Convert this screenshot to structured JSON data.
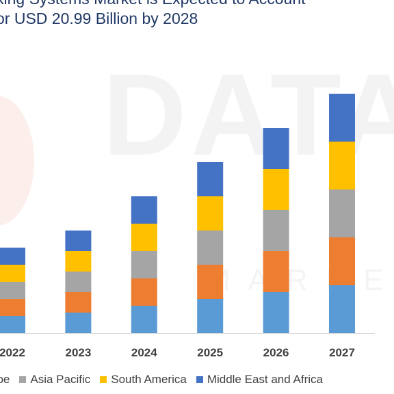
{
  "chart_data": {
    "type": "bar",
    "stacked": true,
    "title_lines": [
      "king Systems Market is Expected to Account",
      "or USD 20.99 Billion by 2028"
    ],
    "categories": [
      "2022",
      "2023",
      "2024",
      "2025",
      "2026",
      "2027"
    ],
    "series": [
      {
        "name": "",
        "color": "#5b9bd5",
        "values": [
          1.0,
          1.2,
          1.6,
          2.0,
          2.4,
          2.8
        ]
      },
      {
        "name": "",
        "color": "#ed7d31",
        "values": [
          1.0,
          1.2,
          1.6,
          2.0,
          2.4,
          2.8
        ]
      },
      {
        "name": "Asia Pacific",
        "color": "#a5a5a5",
        "values": [
          1.0,
          1.2,
          1.6,
          2.0,
          2.4,
          2.8
        ]
      },
      {
        "name": "South America",
        "color": "#ffc000",
        "values": [
          1.0,
          1.2,
          1.6,
          2.0,
          2.4,
          2.8
        ]
      },
      {
        "name": "Middle East and Africa",
        "color": "#4472c4",
        "values": [
          1.0,
          1.2,
          1.6,
          2.0,
          2.4,
          2.8
        ]
      }
    ],
    "legend": {
      "position": "bottom",
      "partial_label": "ope",
      "partial_color": "#ed7d31"
    },
    "ylim": [
      0,
      15
    ],
    "grid": false
  },
  "watermark": {
    "text": "DATAB",
    "subtext": "MARKET"
  }
}
